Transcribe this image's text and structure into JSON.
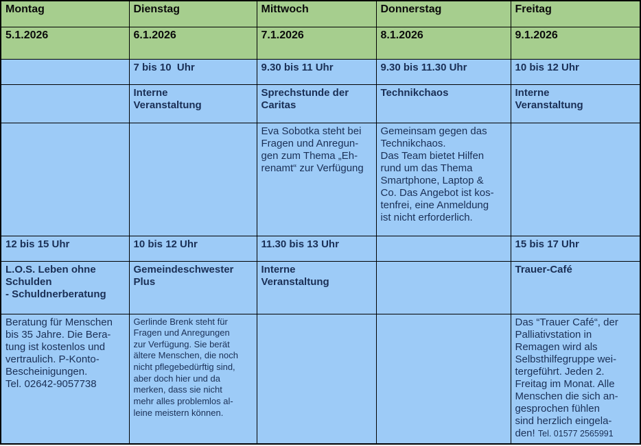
{
  "colors": {
    "header_bg": "#a6ce8e",
    "cell_bg": "#9dcbf7",
    "border": "#000000",
    "header_text": "#0b0b0b",
    "body_text": "#1a2f55"
  },
  "week": {
    "columns": [
      {
        "day": "Montag",
        "date": "5.1.2026",
        "morning": {
          "time": "",
          "title": "",
          "desc": ""
        },
        "afternoon": {
          "time": "12 bis 15 Uhr",
          "title": "L.O.S. Leben ohne\nSchulden\n- Schuldnerberatung",
          "desc": "Beratung für Menschen\nbis 35 Jahre. Die Bera-\ntung ist kostenlos und\nvertraulich. P-Konto-\nBescheinigungen.\nTel. 02642-9057738"
        }
      },
      {
        "day": "Dienstag",
        "date": "6.1.2026",
        "morning": {
          "time": "7 bis 10  Uhr",
          "title": "Interne\nVeranstaltung",
          "desc": ""
        },
        "afternoon": {
          "time": "10 bis 12 Uhr",
          "title": "Gemeindeschwester\nPlus",
          "desc": "Gerlinde Brenk steht für\nFragen und Anregungen\nzur Verfügung. Sie berät\nältere Menschen, die noch\nnicht pflegebedürftig sind,\naber doch hier und da\nmerken, dass sie nicht\nmehr alles problemlos al-\nleine meistern können."
        }
      },
      {
        "day": "Mittwoch",
        "date": "7.1.2026",
        "morning": {
          "time": "9.30 bis 11 Uhr",
          "title": "Sprechstunde der\nCaritas",
          "desc": "Eva Sobotka steht bei\nFragen und Anregun-\ngen zum Thema „Eh-\nrenamt“ zur Verfügung"
        },
        "afternoon": {
          "time": "11.30 bis 13 Uhr",
          "title": "Interne\nVeranstaltung",
          "desc": ""
        }
      },
      {
        "day": "Donnerstag",
        "date": "8.1.2026",
        "morning": {
          "time": "9.30 bis 11.30 Uhr",
          "title": "Technikchaos",
          "desc": "Gemeinsam gegen das\nTechnikchaos.\nDas Team bietet Hilfen\nrund um das Thema\nSmartphone, Laptop &\nCo. Das Angebot ist kos-\ntenfrei, eine Anmeldung\nist nicht erforderlich."
        },
        "afternoon": {
          "time": "",
          "title": "",
          "desc": ""
        }
      },
      {
        "day": "Freitag",
        "date": "9.1.2026",
        "morning": {
          "time": "10 bis 12 Uhr",
          "title": "Interne\nVeranstaltung",
          "desc": ""
        },
        "afternoon": {
          "time": "15 bis 17 Uhr",
          "title": "Trauer-Café",
          "desc": "Das “Trauer Café“, der\nPalliativstation in\nRemagen wird als\nSelbsthilfegruppe wei-\ntergeführt. Jeden 2.\nFreitag im Monat. Alle\nMenschen die sich an-\ngesprochen fühlen\nsind herzlich eingela-\nden! ",
          "tel": "Tel. 01577 2565991"
        }
      }
    ]
  }
}
